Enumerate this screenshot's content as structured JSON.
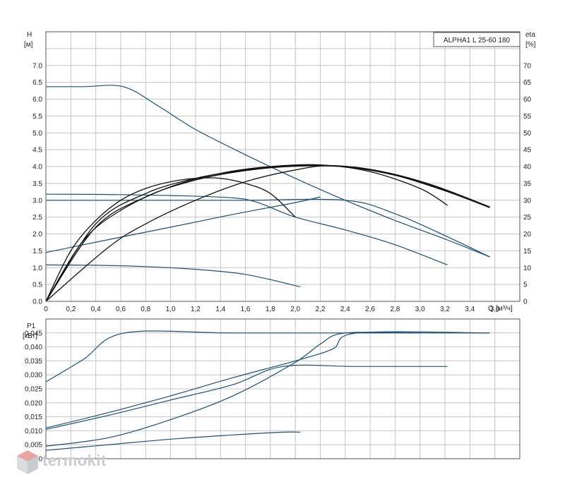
{
  "legend_box": "ALPHA1 L 25-60 180",
  "watermark": "termokit",
  "chart_data": [
    {
      "type": "line",
      "ylabel": "H",
      "yunit": "[м]",
      "y2label": "eta",
      "y2unit": "[%]",
      "xlabel": "Q",
      "xunit": "[м³/ч]",
      "xlim": [
        0,
        3.8
      ],
      "ylim": [
        0,
        8
      ],
      "y2lim": [
        0,
        80
      ],
      "xticks": [
        "0",
        "0,2",
        "0,4",
        "0,6",
        "0,8",
        "1,0",
        "1,2",
        "1,4",
        "1,6",
        "1,8",
        "2,0",
        "2,2",
        "2,4",
        "2,6",
        "2,8",
        "3,0",
        "3,2",
        "3,4",
        "3,6"
      ],
      "yticks": [
        "0.0",
        "0.5",
        "1.0",
        "1.5",
        "2.0",
        "2.5",
        "3.0",
        "3.5",
        "4.0",
        "4.5",
        "5.0",
        "5.5",
        "6.0",
        "6.5",
        "7.0"
      ],
      "y2ticks": [
        "0",
        "5",
        "10",
        "15",
        "20",
        "25",
        "30",
        "35",
        "40",
        "45",
        "50",
        "55",
        "60",
        "65",
        "70"
      ],
      "grid": true,
      "series": [
        {
          "kind": "head",
          "color": "#1f4e6e",
          "points": [
            [
              0,
              6.37
            ],
            [
              0.3,
              6.37
            ],
            [
              0.62,
              6.37
            ],
            [
              0.9,
              5.8
            ],
            [
              1.2,
              5.1
            ],
            [
              1.6,
              4.35
            ],
            [
              2.0,
              3.65
            ],
            [
              2.4,
              3.0
            ],
            [
              2.8,
              2.4
            ],
            [
              3.2,
              1.85
            ],
            [
              3.56,
              1.32
            ]
          ]
        },
        {
          "kind": "head",
          "color": "#1f4e6e",
          "points": [
            [
              0,
              3.18
            ],
            [
              0.5,
              3.17
            ],
            [
              1.0,
              3.14
            ],
            [
              1.5,
              3.07
            ],
            [
              1.7,
              2.93
            ],
            [
              2.0,
              2.5
            ],
            [
              2.4,
              2.12
            ],
            [
              2.8,
              1.68
            ],
            [
              3.22,
              1.08
            ]
          ]
        },
        {
          "kind": "head",
          "color": "#1f4e6e",
          "points": [
            [
              0,
              3.0
            ],
            [
              0.8,
              3.0
            ],
            [
              1.6,
              3.0
            ],
            [
              2.4,
              3.0
            ],
            [
              2.8,
              2.6
            ],
            [
              3.2,
              1.95
            ],
            [
              3.56,
              1.32
            ]
          ]
        },
        {
          "kind": "head",
          "color": "#1f4e6e",
          "points": [
            [
              0,
              1.45
            ],
            [
              0.5,
              1.83
            ],
            [
              1.0,
              2.2
            ],
            [
              1.5,
              2.58
            ],
            [
              2.0,
              2.93
            ],
            [
              2.2,
              3.1
            ]
          ]
        },
        {
          "kind": "head",
          "color": "#1f4e6e",
          "points": [
            [
              0,
              1.08
            ],
            [
              0.4,
              1.07
            ],
            [
              0.8,
              1.03
            ],
            [
              1.2,
              0.95
            ],
            [
              1.6,
              0.8
            ],
            [
              2.04,
              0.43
            ]
          ]
        },
        {
          "kind": "eta",
          "color": "#111111",
          "points": [
            [
              0,
              0
            ],
            [
              0.2,
              15
            ],
            [
              0.4,
              24
            ],
            [
              0.6,
              30
            ],
            [
              0.8,
              33.5
            ],
            [
              1.0,
              35.5
            ],
            [
              1.2,
              36.5
            ],
            [
              1.4,
              36.5
            ],
            [
              1.6,
              35
            ],
            [
              1.8,
              32
            ],
            [
              2.0,
              25
            ]
          ]
        },
        {
          "kind": "eta",
          "color": "#111111",
          "points": [
            [
              0,
              0
            ],
            [
              0.3,
              18
            ],
            [
              0.6,
              27
            ],
            [
              1.0,
              34
            ],
            [
              1.4,
              38
            ],
            [
              1.8,
              40
            ],
            [
              2.2,
              40.5
            ],
            [
              2.6,
              38.5
            ],
            [
              3.0,
              33.5
            ],
            [
              3.22,
              28.5
            ]
          ]
        },
        {
          "kind": "eta",
          "color": "#111111",
          "points": [
            [
              0,
              0
            ],
            [
              0.4,
              23
            ],
            [
              0.8,
              32
            ],
            [
              1.2,
              36.5
            ],
            [
              1.6,
              39
            ],
            [
              2.0,
              40.3
            ],
            [
              2.4,
              40
            ],
            [
              2.8,
              37.5
            ],
            [
              3.2,
              33
            ],
            [
              3.56,
              28
            ]
          ]
        },
        {
          "kind": "eta",
          "color": "#111111",
          "points": [
            [
              0,
              0
            ],
            [
              0.4,
              22
            ],
            [
              0.8,
              31
            ],
            [
              1.2,
              36
            ],
            [
              1.6,
              38.8
            ],
            [
              2.0,
              40.1
            ],
            [
              2.4,
              39.9
            ],
            [
              2.8,
              37.4
            ],
            [
              3.2,
              32.8
            ],
            [
              3.56,
              27.8
            ]
          ]
        },
        {
          "kind": "eta",
          "color": "#111111",
          "points": [
            [
              0,
              0
            ],
            [
              0.5,
              16
            ],
            [
              0.8,
              23
            ],
            [
              1.2,
              30
            ],
            [
              1.6,
              35.5
            ],
            [
              2.0,
              39
            ],
            [
              2.3,
              40.3
            ],
            [
              2.7,
              38.5
            ],
            [
              3.1,
              34.5
            ],
            [
              3.56,
              28
            ]
          ]
        }
      ]
    },
    {
      "type": "line",
      "ylabel": "P1",
      "yunit": "[кВт]",
      "xlim": [
        0,
        3.8
      ],
      "ylim": [
        0,
        0.05
      ],
      "yticks": [
        "0",
        "0,005",
        "0,010",
        "0,015",
        "0,020",
        "0,025",
        "0,030",
        "0,035",
        "0,040",
        "0,045"
      ],
      "grid": true,
      "series": [
        {
          "color": "#1f4e6e",
          "points": [
            [
              0,
              0.0275
            ],
            [
              0.3,
              0.0355
            ],
            [
              0.63,
              0.045
            ],
            [
              1.5,
              0.045
            ],
            [
              2.5,
              0.045
            ],
            [
              3.56,
              0.045
            ]
          ]
        },
        {
          "color": "#1f4e6e",
          "points": [
            [
              0,
              0.0105
            ],
            [
              0.5,
              0.0155
            ],
            [
              1.0,
              0.021
            ],
            [
              1.5,
              0.0265
            ],
            [
              1.9,
              0.033
            ],
            [
              2.5,
              0.033
            ],
            [
              3.22,
              0.033
            ]
          ]
        },
        {
          "color": "#1f4e6e",
          "points": [
            [
              0,
              0.011
            ],
            [
              0.5,
              0.0165
            ],
            [
              1.0,
              0.0225
            ],
            [
              1.5,
              0.029
            ],
            [
              2.0,
              0.035
            ],
            [
              2.3,
              0.0393
            ],
            [
              2.5,
              0.045
            ],
            [
              3.56,
              0.045
            ]
          ]
        },
        {
          "color": "#1f4e6e",
          "points": [
            [
              0,
              0.0045
            ],
            [
              0.5,
              0.0075
            ],
            [
              1.0,
              0.014
            ],
            [
              1.5,
              0.0225
            ],
            [
              2.0,
              0.0345
            ],
            [
              2.2,
              0.041
            ],
            [
              2.4,
              0.045
            ],
            [
              3.0,
              0.045
            ]
          ]
        },
        {
          "color": "#1f4e6e",
          "points": [
            [
              0,
              0.003
            ],
            [
              0.5,
              0.005
            ],
            [
              1.0,
              0.007
            ],
            [
              1.5,
              0.0085
            ],
            [
              1.9,
              0.0095
            ],
            [
              2.04,
              0.0095
            ]
          ]
        }
      ]
    }
  ]
}
